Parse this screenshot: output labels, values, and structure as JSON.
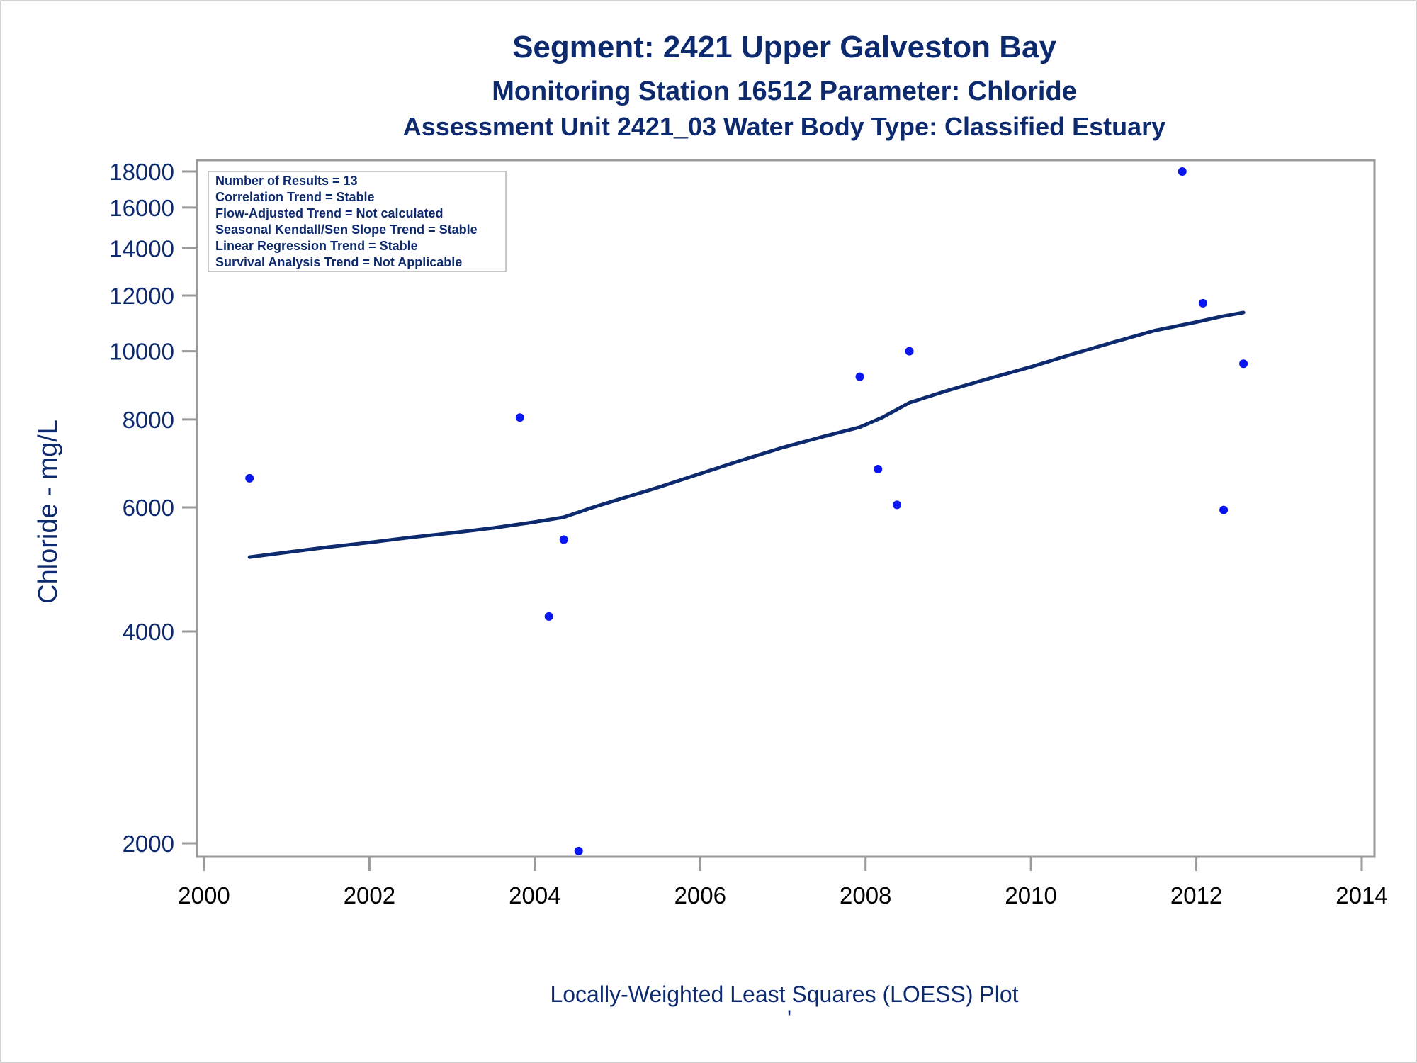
{
  "colors": {
    "text": "#0e2a6e",
    "frame": "#9a9a9a",
    "point": "#0a16f0",
    "trend": "#0e2a6e",
    "info_border": "#c8c8c8"
  },
  "chart_data": {
    "type": "scatter",
    "title": "Segment: 2421  Upper Galveston Bay",
    "subtitle": "Monitoring Station 16512 Parameter: Chloride",
    "subtitle2": "Assessment Unit 2421_03   Water Body Type: Classified Estuary",
    "xlabel": "",
    "ylabel": "Chloride - mg/L",
    "footnote": "Locally-Weighted Least Squares (LOESS) Plot",
    "footnote_mark": "'",
    "y_scale": "log",
    "xlim": [
      2000,
      2014
    ],
    "ylim": [
      1950,
      18000
    ],
    "x_ticks": [
      2000,
      2002,
      2004,
      2006,
      2008,
      2010,
      2012,
      2014
    ],
    "x_tick_labels": [
      "2000",
      "2002",
      "2004",
      "2006",
      "2008",
      "2010",
      "2012",
      "2014"
    ],
    "y_ticks": [
      2000,
      4000,
      6000,
      8000,
      10000,
      12000,
      14000,
      16000,
      18000
    ],
    "y_tick_labels": [
      "2000",
      "4000",
      "6000",
      "8000",
      "10000",
      "12000",
      "14000",
      "16000",
      "18000"
    ],
    "grid": false,
    "legend": "none",
    "info_box": {
      "position": "top-left",
      "lines": [
        "Number of Results = 13",
        "Correlation Trend = Stable",
        "Flow-Adjusted Trend = Not calculated",
        "Seasonal Kendall/Sen Slope Trend = Stable",
        "Linear Regression Trend = Stable",
        "Survival Analysis Trend = Not Applicable"
      ]
    },
    "points": [
      {
        "x": 2000.55,
        "y": 6600
      },
      {
        "x": 2003.82,
        "y": 8050
      },
      {
        "x": 2004.17,
        "y": 4200
      },
      {
        "x": 2004.35,
        "y": 5400
      },
      {
        "x": 2004.53,
        "y": 1950
      },
      {
        "x": 2007.93,
        "y": 9200
      },
      {
        "x": 2008.15,
        "y": 6800
      },
      {
        "x": 2008.38,
        "y": 6050
      },
      {
        "x": 2008.53,
        "y": 10000
      },
      {
        "x": 2011.83,
        "y": 18000
      },
      {
        "x": 2012.08,
        "y": 11700
      },
      {
        "x": 2012.33,
        "y": 5950
      },
      {
        "x": 2012.57,
        "y": 9600
      }
    ],
    "trend_line": [
      {
        "x": 2000.55,
        "y": 5100
      },
      {
        "x": 2001.0,
        "y": 5180
      },
      {
        "x": 2001.5,
        "y": 5270
      },
      {
        "x": 2002.0,
        "y": 5350
      },
      {
        "x": 2002.5,
        "y": 5440
      },
      {
        "x": 2003.0,
        "y": 5520
      },
      {
        "x": 2003.5,
        "y": 5610
      },
      {
        "x": 2004.0,
        "y": 5720
      },
      {
        "x": 2004.35,
        "y": 5810
      },
      {
        "x": 2004.7,
        "y": 6000
      },
      {
        "x": 2005.0,
        "y": 6150
      },
      {
        "x": 2005.5,
        "y": 6410
      },
      {
        "x": 2006.0,
        "y": 6700
      },
      {
        "x": 2006.5,
        "y": 7000
      },
      {
        "x": 2007.0,
        "y": 7300
      },
      {
        "x": 2007.5,
        "y": 7570
      },
      {
        "x": 2007.93,
        "y": 7800
      },
      {
        "x": 2008.2,
        "y": 8050
      },
      {
        "x": 2008.53,
        "y": 8450
      },
      {
        "x": 2009.0,
        "y": 8800
      },
      {
        "x": 2009.5,
        "y": 9150
      },
      {
        "x": 2010.0,
        "y": 9500
      },
      {
        "x": 2010.5,
        "y": 9900
      },
      {
        "x": 2011.0,
        "y": 10300
      },
      {
        "x": 2011.5,
        "y": 10700
      },
      {
        "x": 2012.0,
        "y": 11000
      },
      {
        "x": 2012.3,
        "y": 11200
      },
      {
        "x": 2012.57,
        "y": 11350
      }
    ]
  }
}
